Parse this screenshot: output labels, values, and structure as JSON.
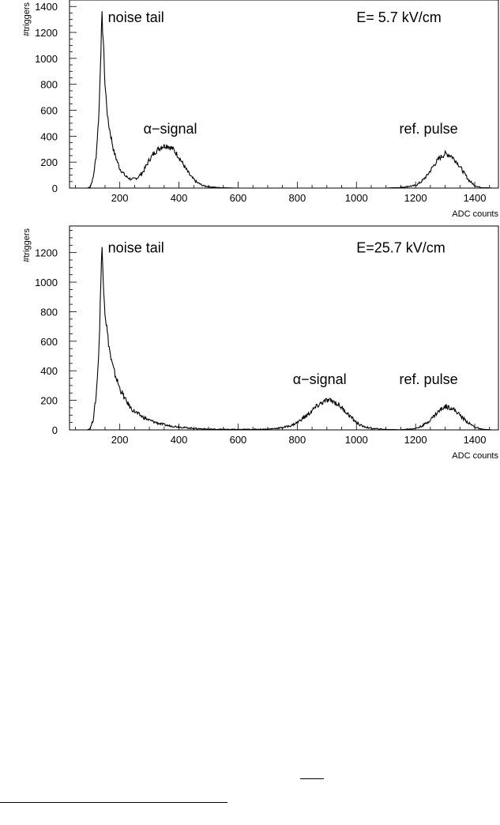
{
  "chart_data": [
    {
      "type": "line",
      "title": "",
      "xlabel": "ADC counts",
      "ylabel": "#triggers",
      "xlim": [
        30,
        1480
      ],
      "ylim": [
        0,
        1450
      ],
      "xticks": [
        "200",
        "400",
        "600",
        "800",
        "1000",
        "1200",
        "1400"
      ],
      "yticks": [
        "0",
        "200",
        "400",
        "600",
        "800",
        "1000",
        "1200",
        "1400"
      ],
      "grid": false,
      "annotations": [
        {
          "text": "noise tail",
          "x": 160,
          "y": 1280
        },
        {
          "text": "E= 5.7 kV/cm",
          "x": 1000,
          "y": 1280
        },
        {
          "text": "α−signal",
          "x": 280,
          "y": 420
        },
        {
          "text": "ref. pulse",
          "x": 1145,
          "y": 420
        }
      ],
      "series": [
        {
          "x": [
            70,
            90,
            100,
            110,
            120,
            130,
            135,
            140,
            145,
            150,
            160,
            180,
            200,
            220,
            240,
            260,
            280,
            300,
            320,
            340,
            360,
            380,
            400,
            420,
            440,
            460,
            480,
            500,
            540,
            600,
            700,
            800,
            1000,
            1100,
            1150,
            1200,
            1220,
            1240,
            1260,
            1280,
            1300,
            1320,
            1340,
            1360,
            1380,
            1400,
            1420,
            1460
          ],
          "y": [
            0,
            0,
            10,
            80,
            250,
            600,
            1000,
            1320,
            1100,
            800,
            520,
            280,
            150,
            90,
            65,
            80,
            130,
            220,
            280,
            320,
            330,
            300,
            240,
            160,
            90,
            45,
            20,
            10,
            3,
            0,
            0,
            0,
            0,
            0,
            5,
            20,
            50,
            100,
            170,
            230,
            265,
            250,
            200,
            130,
            60,
            20,
            5,
            0
          ]
        }
      ]
    },
    {
      "type": "line",
      "title": "",
      "xlabel": "ADC counts",
      "ylabel": "#triggers",
      "xlim": [
        30,
        1480
      ],
      "ylim": [
        0,
        1380
      ],
      "xticks": [
        "200",
        "400",
        "600",
        "800",
        "1000",
        "1200",
        "1400"
      ],
      "yticks": [
        "0",
        "200",
        "400",
        "600",
        "800",
        "1000",
        "1200"
      ],
      "grid": false,
      "annotations": [
        {
          "text": "noise tail",
          "x": 160,
          "y": 1200
        },
        {
          "text": "E=25.7 kV/cm",
          "x": 1000,
          "y": 1200
        },
        {
          "text": "α−signal",
          "x": 785,
          "y": 310
        },
        {
          "text": "ref. pulse",
          "x": 1145,
          "y": 310
        }
      ],
      "series": [
        {
          "x": [
            70,
            90,
            100,
            110,
            120,
            130,
            135,
            140,
            145,
            150,
            160,
            170,
            180,
            200,
            220,
            240,
            260,
            280,
            300,
            330,
            360,
            400,
            450,
            500,
            600,
            700,
            750,
            780,
            800,
            820,
            840,
            860,
            880,
            900,
            920,
            940,
            960,
            980,
            1000,
            1020,
            1050,
            1100,
            1150,
            1200,
            1220,
            1240,
            1260,
            1280,
            1300,
            1320,
            1340,
            1360,
            1380,
            1400,
            1420,
            1460
          ],
          "y": [
            0,
            0,
            10,
            70,
            230,
            560,
            950,
            1230,
            1000,
            800,
            620,
            480,
            400,
            280,
            200,
            140,
            110,
            85,
            65,
            45,
            30,
            20,
            10,
            5,
            3,
            5,
            15,
            30,
            50,
            80,
            110,
            150,
            180,
            200,
            195,
            170,
            130,
            90,
            50,
            25,
            10,
            3,
            1,
            10,
            25,
            50,
            90,
            130,
            160,
            150,
            120,
            80,
            45,
            20,
            5,
            0
          ]
        }
      ]
    }
  ]
}
